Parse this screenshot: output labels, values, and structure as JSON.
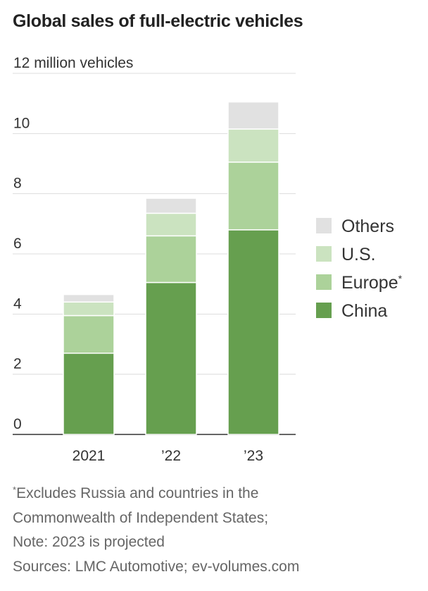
{
  "title": "Global sales of full-electric vehicles",
  "chart_data": {
    "type": "bar",
    "stacked": true,
    "title": "Global sales of full-electric vehicles",
    "ylabel": "12 million vehicles",
    "ylim": [
      0,
      12
    ],
    "yticks": [
      "0",
      "2",
      "4",
      "6",
      "8",
      "10",
      "12 million vehicles"
    ],
    "categories": [
      "2021",
      "’22",
      "’23"
    ],
    "series": [
      {
        "name": "China",
        "color": "#669f4f",
        "values": [
          2.7,
          5.05,
          6.8
        ]
      },
      {
        "name": "Europe",
        "marker": "*",
        "color": "#acd29a",
        "values": [
          1.25,
          1.55,
          2.25
        ]
      },
      {
        "name": "U.S.",
        "color": "#cbe3c0",
        "values": [
          0.45,
          0.75,
          1.1
        ]
      },
      {
        "name": "Others",
        "color": "#e1e1e1",
        "values": [
          0.25,
          0.5,
          0.9
        ]
      }
    ],
    "legend_order": [
      "Others",
      "U.S.",
      "Europe",
      "China"
    ],
    "legend_position": "right",
    "grid": true
  },
  "footnote": {
    "marker": "*",
    "lines": [
      "Excludes Russia and countries in the",
      "Commonwealth of Independent States;",
      "Note: 2023 is projected",
      "Sources: LMC Automotive; ev-volumes.com"
    ]
  }
}
